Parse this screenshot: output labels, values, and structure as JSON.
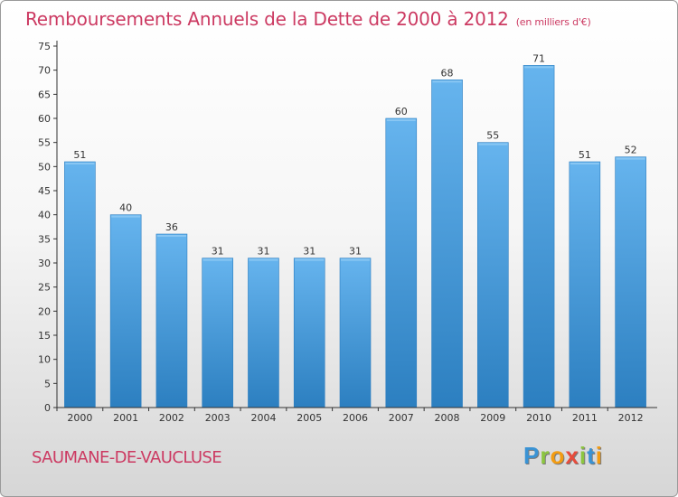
{
  "chart_data": {
    "type": "bar",
    "title": "Remboursements Annuels de la Dette de 2000 à 2012",
    "subtitle": "(en milliers d'€)",
    "xlabel": "",
    "ylabel": "",
    "categories": [
      "2000",
      "2001",
      "2002",
      "2003",
      "2004",
      "2005",
      "2006",
      "2007",
      "2008",
      "2009",
      "2010",
      "2011",
      "2012"
    ],
    "values": [
      51,
      40,
      36,
      31,
      31,
      31,
      31,
      60,
      68,
      55,
      71,
      51,
      52
    ],
    "ylim": [
      0,
      75
    ],
    "yticks": [
      0,
      5,
      10,
      15,
      20,
      25,
      30,
      35,
      40,
      45,
      50,
      55,
      60,
      65,
      70,
      75
    ],
    "grid": false,
    "bar_color": "#5aacea"
  },
  "location": "SAUMANE-DE-VAUCLUSE",
  "brand": {
    "letters": [
      "P",
      "r",
      "o",
      "x",
      "i",
      "t",
      "i"
    ],
    "colors": [
      "#3a93d4",
      "#8cc63f",
      "#f39c12",
      "#e74c3c",
      "#8cc63f",
      "#3a93d4",
      "#f39c12"
    ]
  },
  "colors": {
    "title": "#cc3a62",
    "axis": "#333333"
  }
}
